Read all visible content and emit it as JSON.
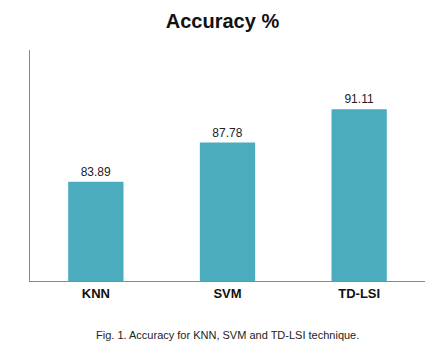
{
  "chart_data": {
    "type": "bar",
    "title": "Accuracy %",
    "categories": [
      "KNN",
      "SVM",
      "TD-LSI"
    ],
    "values": [
      83.89,
      87.78,
      91.11
    ],
    "color": "#4AACBD",
    "ylim": [
      74,
      97
    ],
    "yticks": [],
    "tick_labels": "x",
    "data_labels": true,
    "grid": false,
    "caption": "Fig. 1. Accuracy for KNN, SVM and TD-LSI technique."
  }
}
